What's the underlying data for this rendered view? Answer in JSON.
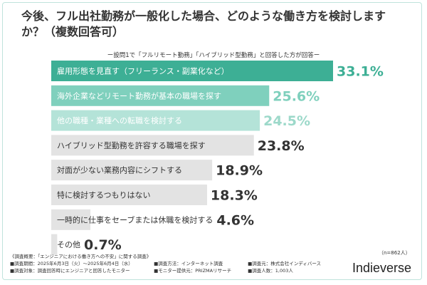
{
  "title": "今後、フル出社勤務が一般化した場合、どのような働き方を検討しますか？（複数回答可）",
  "subtitle": "ー設問1で「フルリモート勤務」「ハイブリッド型勤務」と回答した方が回答ー",
  "chart_data": {
    "type": "bar",
    "orientation": "horizontal",
    "title": "今後、フル出社勤務が一般化した場合、どのような働き方を検討しますか？（複数回答可）",
    "categories": [
      "雇用形態を見直す（フリーランス・副業化など）",
      "海外企業などリモート勤務が基本の職場を探す",
      "他の職種・業種への転職を検討する",
      "ハイブリッド型勤務を許容する職場を探す",
      "対面が少ない業務内容にシフトする",
      "特に検討するつもりはない",
      "一時的に仕事をセーブまたは休職を検討する",
      "その他"
    ],
    "values": [
      33.1,
      25.6,
      24.5,
      23.8,
      18.9,
      18.3,
      4.6,
      0.7
    ],
    "value_labels": [
      "33.1%",
      "25.6%",
      "24.5%",
      "23.8%",
      "18.9%",
      "18.3%",
      "4.6%",
      "0.7%"
    ],
    "xlim": [
      0,
      33.1
    ],
    "bar_colors": [
      "#3daf95",
      "#7fd0bd",
      "#b4e3d8",
      "#e3e3e3",
      "#e3e3e3",
      "#e3e3e3",
      "#e3e3e3",
      "#e3e3e3"
    ],
    "label_colors": [
      "#ffffff",
      "#ffffff",
      "#ffffff",
      "#333333",
      "#333333",
      "#333333",
      "#333333",
      "#333333"
    ],
    "value_colors": [
      "#3daf95",
      "#7fd0bd",
      "#9dd9ca",
      "#333333",
      "#333333",
      "#333333",
      "#333333",
      "#333333"
    ]
  },
  "footer": {
    "survey_title": "《調査概要：「エンジニアにおける働き方への不安」に関する調査》",
    "period": "■調査期間：2025年6月3日（火）〜2025年6月4日（水）",
    "method": "■調査方法：インターネット調査",
    "organizer": "■調査元：株式会社インディバース",
    "target": "■調査対象：調査回答時にエンジニアと回答したモニター",
    "provider": "■モニター提供元：PRIZMAリサーチ",
    "respondents": "■調査人数：1,003人"
  },
  "sample_size": "（n=862人）",
  "brand": "Indieverse"
}
